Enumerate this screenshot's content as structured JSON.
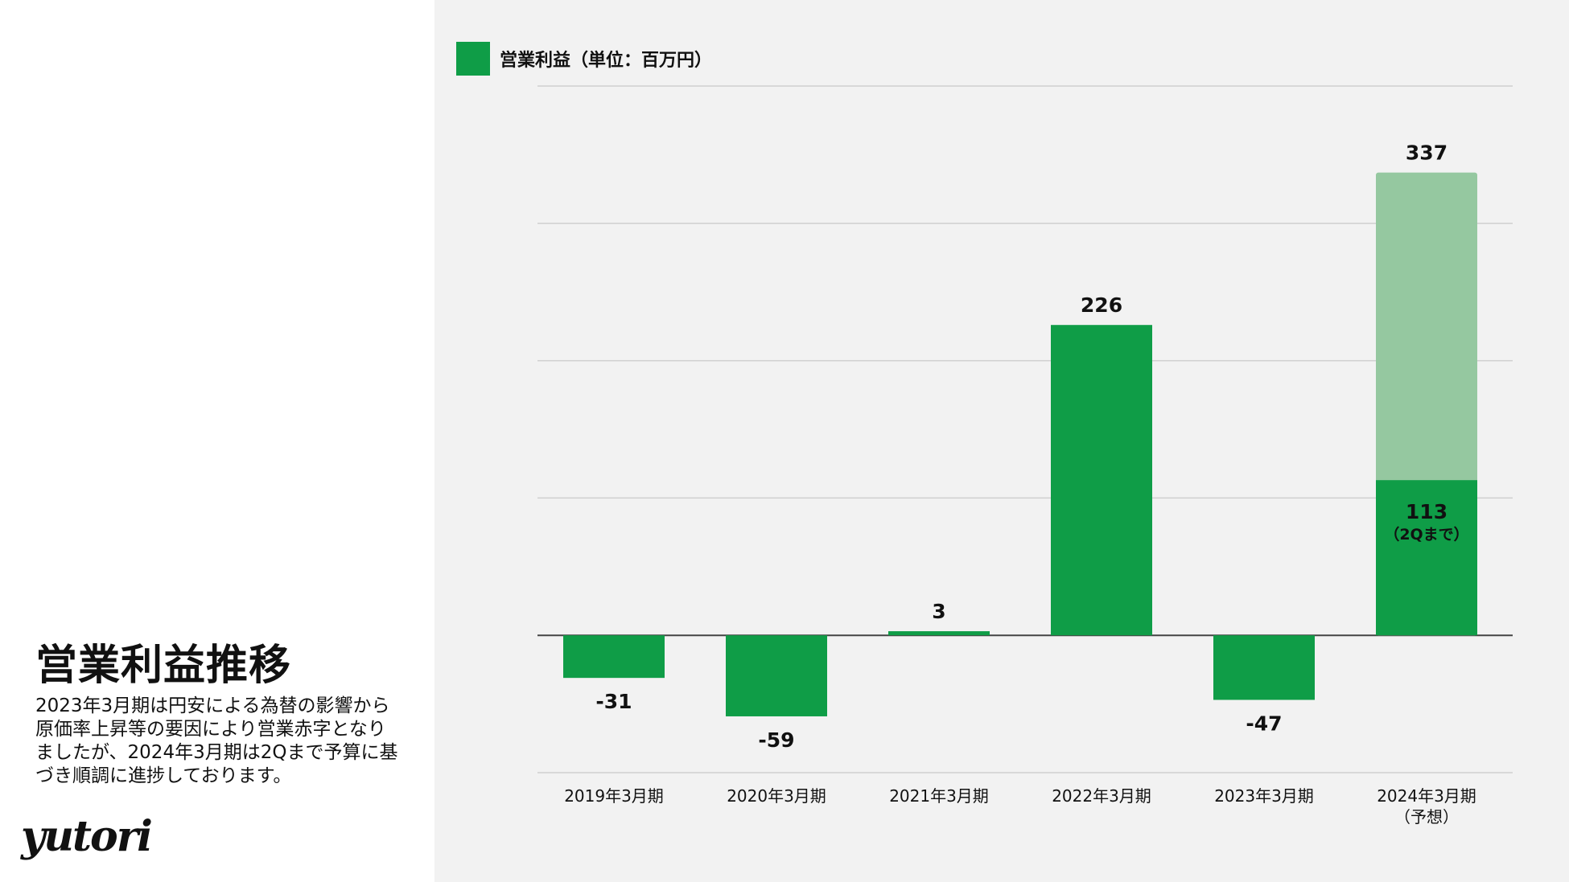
{
  "page": {
    "title": "営業利益推移",
    "description_lines": [
      "2023年3月期は円安による為替の影響から",
      "原価率上昇等の要因により営業赤字となり",
      "ましたが、2024年3月期は2Qまで予算に基",
      "づき順調に進捗しております。"
    ],
    "logo_text": "yutori"
  },
  "chart_data": {
    "type": "bar",
    "legend": {
      "label": "営業利益（単位：百万円）",
      "color": "#0f9d47",
      "position": "top-left"
    },
    "categories": [
      "2019年3月期",
      "2020年3月期",
      "2021年3月期",
      "2022年3月期",
      "2023年3月期",
      "2024年3月期"
    ],
    "category_sublabels": [
      "",
      "",
      "",
      "",
      "",
      "（予想）"
    ],
    "values": [
      -31,
      -59,
      3,
      226,
      -47,
      337
    ],
    "value_labels": [
      "-31",
      "-59",
      "3",
      "226",
      "-47",
      "337"
    ],
    "partial": {
      "category": "2024年3月期",
      "value": 113,
      "label": "113",
      "sublabel": "（2Qまで）",
      "color": "#0f9d47"
    },
    "forecast_color": "#95c8a0",
    "bar_color": "#0f9d47",
    "ylim": [
      -100,
      400
    ],
    "gridlines": [
      -100,
      0,
      100,
      200,
      300,
      400
    ],
    "grid": true
  }
}
